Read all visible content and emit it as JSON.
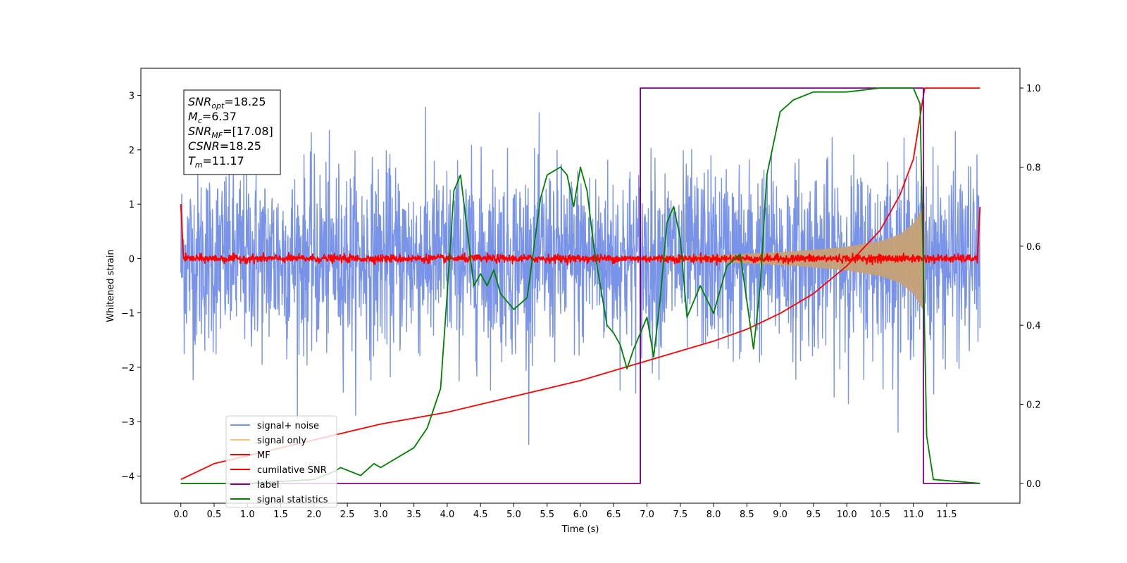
{
  "chart_data": {
    "type": "line",
    "xlabel": "Time (s)",
    "ylabel": "Whitened strain",
    "xlim": [
      -0.6,
      12.6
    ],
    "ylim": [
      -4.5,
      3.5
    ],
    "ylim_right": [
      -0.05,
      1.05
    ],
    "x_ticks": [
      "0.0",
      "0.5",
      "1.0",
      "1.5",
      "2.0",
      "2.5",
      "3.0",
      "3.5",
      "4.0",
      "4.5",
      "5.0",
      "5.5",
      "6.0",
      "6.5",
      "7.0",
      "7.5",
      "8.0",
      "8.5",
      "9.0",
      "9.5",
      "10.0",
      "10.5",
      "11.0",
      "11.5"
    ],
    "y_ticks_left": [
      "3",
      "2",
      "1",
      "0",
      "−1",
      "−2",
      "−3",
      "−4"
    ],
    "y_ticks_right": [
      "1.0",
      "0.8",
      "0.6",
      "0.4",
      "0.2",
      "0.0"
    ],
    "grid": false,
    "legend_position": "lower-left",
    "annotation": {
      "lines": [
        {
          "var": "SNR",
          "sub": "opt",
          "value": "=18.25"
        },
        {
          "var": "M",
          "sub": "c",
          "value": "=6.37"
        },
        {
          "var": "SNR",
          "sub": "MF",
          "value": "=[17.08]"
        },
        {
          "var": "CSNR",
          "sub": "",
          "value": "=18.25"
        },
        {
          "var": "T",
          "sub": "m",
          "value": "=11.17"
        }
      ]
    },
    "series": [
      {
        "name": "signal+ noise",
        "color": "#7893e8",
        "axis": "left",
        "kind": "noise",
        "x_range": [
          0,
          12
        ],
        "typical_amplitude": 1.0,
        "peak_range": [
          -3.5,
          3.1
        ]
      },
      {
        "name": "signal only",
        "color": "#f5c77a",
        "axis": "left",
        "kind": "chirp",
        "x_range": [
          6.9,
          11.17
        ],
        "envelope": {
          "x": [
            6.9,
            8.0,
            9.0,
            9.5,
            10.0,
            10.5,
            10.8,
            11.0,
            11.1,
            11.17
          ],
          "amp": [
            0.02,
            0.06,
            0.12,
            0.16,
            0.22,
            0.32,
            0.45,
            0.65,
            0.85,
            1.0
          ]
        }
      },
      {
        "name": "MF",
        "color": "#ff0000",
        "axis": "left",
        "kind": "noise",
        "x_range": [
          0,
          12
        ],
        "typical_amplitude": 0.06
      },
      {
        "name": "cumilative SNR",
        "color": "#ff0000",
        "axis": "right",
        "x": [
          0.0,
          0.5,
          1.0,
          2.0,
          3.0,
          4.0,
          5.0,
          6.0,
          7.0,
          8.0,
          8.5,
          9.0,
          9.5,
          10.0,
          10.5,
          10.8,
          11.0,
          11.15,
          11.17,
          12.0
        ],
        "y": [
          0.01,
          0.05,
          0.07,
          0.11,
          0.15,
          0.18,
          0.22,
          0.26,
          0.31,
          0.36,
          0.39,
          0.43,
          0.48,
          0.55,
          0.64,
          0.73,
          0.82,
          0.98,
          1.0,
          1.0
        ]
      },
      {
        "name": "label",
        "color": "#800080",
        "axis": "right",
        "x": [
          0.0,
          6.9,
          6.9,
          11.15,
          11.15,
          12.0
        ],
        "y": [
          0.0,
          0.0,
          1.0,
          1.0,
          0.0,
          0.0
        ]
      },
      {
        "name": "signal statistics",
        "color": "#008000",
        "axis": "right",
        "x": [
          0.0,
          1.0,
          2.0,
          2.3,
          2.4,
          2.7,
          2.9,
          3.0,
          3.5,
          3.7,
          3.9,
          4.0,
          4.1,
          4.2,
          4.3,
          4.4,
          4.5,
          4.6,
          4.7,
          4.8,
          5.0,
          5.2,
          5.4,
          5.5,
          5.7,
          5.8,
          5.9,
          6.0,
          6.1,
          6.2,
          6.4,
          6.5,
          6.6,
          6.7,
          6.8,
          6.9,
          7.0,
          7.1,
          7.2,
          7.3,
          7.4,
          7.5,
          7.6,
          7.8,
          8.0,
          8.2,
          8.4,
          8.5,
          8.6,
          8.7,
          8.8,
          8.9,
          9.0,
          9.2,
          9.5,
          10.0,
          10.5,
          11.0,
          11.1,
          11.2,
          11.3,
          12.0
        ],
        "y": [
          0.0,
          0.0,
          0.01,
          0.03,
          0.04,
          0.02,
          0.05,
          0.04,
          0.09,
          0.14,
          0.24,
          0.48,
          0.74,
          0.78,
          0.64,
          0.5,
          0.53,
          0.5,
          0.54,
          0.48,
          0.44,
          0.47,
          0.72,
          0.78,
          0.8,
          0.78,
          0.7,
          0.8,
          0.74,
          0.6,
          0.4,
          0.38,
          0.35,
          0.29,
          0.34,
          0.38,
          0.42,
          0.32,
          0.47,
          0.66,
          0.7,
          0.62,
          0.42,
          0.5,
          0.43,
          0.55,
          0.58,
          0.46,
          0.34,
          0.5,
          0.78,
          0.86,
          0.94,
          0.97,
          0.99,
          0.99,
          1.0,
          1.0,
          0.96,
          0.12,
          0.01,
          0.0
        ]
      }
    ]
  }
}
